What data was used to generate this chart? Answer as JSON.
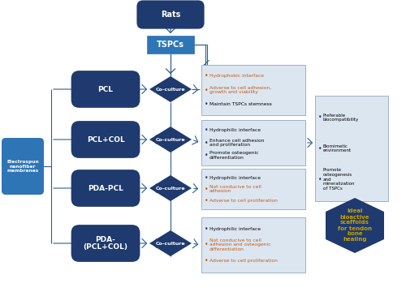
{
  "bg_color": "#ffffff",
  "dark_blue": "#1e3a6e",
  "mid_blue": "#2e75b6",
  "light_blue_box": "#dce6f1",
  "gold_color": "#c8a000",
  "orange_red": "#c55a11",
  "arrow_color": "#2e5f8a",
  "rats_text": "Rats",
  "tspcs_text": "TSPCs",
  "enm_text": "Electrospun\nnanofiber\nmembranes",
  "pcl_text": "PCL",
  "pcl_col_text": "PCL+COL",
  "pda_pcl_text": "PDA-PCL",
  "pda_pcl_col_text": "PDA-\n(PCL+COL)",
  "coculture_text": "Co-culture",
  "box1_bullets": [
    "Hydrophobic interface",
    "Adverse to cell adhesion,\ngrowth and viability",
    "Maintain TSPCs stemness"
  ],
  "box1_colors": [
    "orange",
    "orange",
    "black"
  ],
  "box2_bullets": [
    "Hydrophilic interface",
    "Enhance cell adhesion\nand proliferation",
    "Promote osteogenic\ndifferentiation"
  ],
  "box2_colors": [
    "black",
    "black",
    "black"
  ],
  "box3_bullets": [
    "Hydrophilic interface",
    "Not conducive to cell\nadhesion",
    "Adverse to cell proliferation"
  ],
  "box3_colors": [
    "black",
    "orange",
    "orange"
  ],
  "box4_bullets": [
    "Hydrophilic interface",
    "Not conducive to cell\nadhesion and osteogenic\ndifferentiation",
    "Adverse to cell proliferation"
  ],
  "box4_colors": [
    "black",
    "orange",
    "orange"
  ],
  "right_box_bullets": [
    "Preferable\nbiocompatibility",
    "Biomimetic\nenvironment",
    "Promote\nosteogenesis\nand\nmineralization\nof TSPCs"
  ],
  "final_text": "Ideal\nbioactive\nscaffolds\nfor tendon\nbone\nhealing"
}
